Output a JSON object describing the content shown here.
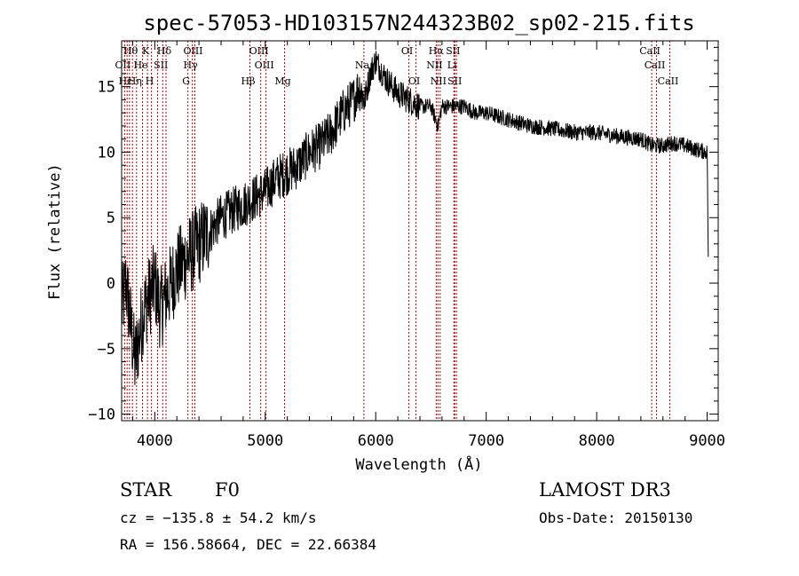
{
  "chart_data": {
    "type": "line",
    "title": "spec-57053-HD103157N244323B02_sp02-215.fits",
    "xlabel": "Wavelength (Å)",
    "ylabel": "Flux (relative)",
    "xlim": [
      3700,
      9100
    ],
    "ylim": [
      -10.5,
      18.5
    ],
    "x_ticks": [
      4000,
      5000,
      6000,
      7000,
      8000,
      9000
    ],
    "y_ticks": [
      -10,
      -5,
      0,
      5,
      10,
      15
    ],
    "x_tick_labels": [
      "4000",
      "5000",
      "6000",
      "7000",
      "8000",
      "9000"
    ],
    "y_tick_labels": [
      "−10",
      "−5",
      "0",
      "5",
      "10",
      "15"
    ],
    "grid": false,
    "series": [
      {
        "name": "flux",
        "x": [
          3700,
          3740,
          3780,
          3820,
          3860,
          3900,
          3950,
          4000,
          4050,
          4100,
          4150,
          4200,
          4250,
          4300,
          4350,
          4400,
          4500,
          4600,
          4700,
          4800,
          4900,
          5000,
          5100,
          5200,
          5300,
          5400,
          5500,
          5600,
          5700,
          5800,
          5850,
          5900,
          5950,
          6000,
          6100,
          6200,
          6300,
          6400,
          6500,
          6563,
          6600,
          6700,
          6800,
          6900,
          7000,
          7200,
          7400,
          7600,
          7800,
          8000,
          8200,
          8400,
          8500,
          8600,
          8700,
          8800,
          8900,
          9000,
          9010
        ],
        "y": [
          -2,
          0,
          -3,
          -6,
          -4,
          -2,
          -1,
          0,
          -2,
          -1,
          0,
          1,
          1.5,
          2,
          2.5,
          3,
          4,
          5,
          5.5,
          6,
          6.5,
          7,
          8,
          8.5,
          9,
          10,
          10.5,
          11.5,
          13,
          14,
          15,
          14,
          16,
          17,
          15.5,
          14.5,
          14,
          13.5,
          13.5,
          12,
          13.5,
          13.5,
          13.5,
          13,
          13,
          12.5,
          12,
          11.8,
          11.5,
          11.5,
          11.2,
          11,
          10.5,
          10.5,
          10.7,
          10.5,
          10.2,
          10,
          2
        ]
      }
    ],
    "line_marks": {
      "wavelengths": [
        3727,
        3750,
        3771,
        3798,
        3835,
        3889,
        3934,
        3970,
        4026,
        4072,
        4102,
        4300,
        4340,
        4363,
        4861,
        4959,
        5007,
        5175,
        5893,
        6300,
        6364,
        6548,
        6563,
        6583,
        6707,
        6716,
        6731,
        8498,
        8542,
        8662
      ],
      "color": "#c00000"
    },
    "line_labels": [
      {
        "text": "Hθ",
        "wavelength": 3798,
        "row": 1
      },
      {
        "text": "K",
        "wavelength": 3934,
        "row": 1
      },
      {
        "text": "Hδ",
        "wavelength": 4102,
        "row": 1
      },
      {
        "text": "OIII",
        "wavelength": 4363,
        "row": 1
      },
      {
        "text": "OIII",
        "wavelength": 4959,
        "row": 1
      },
      {
        "text": "OI",
        "wavelength": 6300,
        "row": 1
      },
      {
        "text": "Hα",
        "wavelength": 6563,
        "row": 1
      },
      {
        "text": "SII",
        "wavelength": 6716,
        "row": 1
      },
      {
        "text": "CaII",
        "wavelength": 8498,
        "row": 1
      },
      {
        "text": "OII",
        "wavelength": 3727,
        "row": 2
      },
      {
        "text": "He",
        "wavelength": 3889,
        "row": 2
      },
      {
        "text": "SII",
        "wavelength": 4072,
        "row": 2
      },
      {
        "text": "Hγ",
        "wavelength": 4340,
        "row": 2
      },
      {
        "text": "OIII",
        "wavelength": 5007,
        "row": 2
      },
      {
        "text": "Na",
        "wavelength": 5893,
        "row": 2
      },
      {
        "text": "NII",
        "wavelength": 6548,
        "row": 2
      },
      {
        "text": "Li",
        "wavelength": 6707,
        "row": 2
      },
      {
        "text": "CaII",
        "wavelength": 8542,
        "row": 2
      },
      {
        "text": "Hε",
        "wavelength": 3750,
        "row": 3
      },
      {
        "text": "Hη",
        "wavelength": 3835,
        "row": 3
      },
      {
        "text": "H",
        "wavelength": 3970,
        "row": 3
      },
      {
        "text": "G",
        "wavelength": 4300,
        "row": 3
      },
      {
        "text": "Hβ",
        "wavelength": 4861,
        "row": 3
      },
      {
        "text": "Mg",
        "wavelength": 5175,
        "row": 3
      },
      {
        "text": "OI",
        "wavelength": 6364,
        "row": 3
      },
      {
        "text": "NII",
        "wavelength": 6583,
        "row": 3
      },
      {
        "text": "SII",
        "wavelength": 6731,
        "row": 3
      },
      {
        "text": "CaII",
        "wavelength": 8662,
        "row": 3
      }
    ]
  },
  "info": {
    "object_class": "STAR",
    "subclass": "F0",
    "survey": "LAMOST DR3",
    "redshift": "cz = −135.8 ± 54.2 km/s",
    "obs_date": "Obs-Date: 20150130",
    "coords": "RA = 156.58664, DEC =  22.66384"
  }
}
